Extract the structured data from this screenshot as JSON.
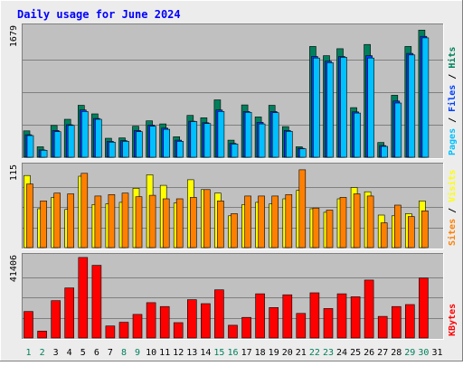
{
  "chart_data": {
    "type": "bar",
    "title": "Daily usage for June 2024",
    "colors": {
      "background": "#ECECEC",
      "panel": "#C0C0C0",
      "title": "#0000FF",
      "hits": "#00805C",
      "files": "#0040FF",
      "pages": "#00C0FF",
      "visits": "#FFFF00",
      "sites": "#FF8000",
      "kbytes": "#FF0000",
      "weekend_label": "#00805C"
    },
    "categories": [
      "1",
      "2",
      "3",
      "4",
      "5",
      "6",
      "7",
      "8",
      "9",
      "10",
      "11",
      "12",
      "13",
      "14",
      "15",
      "16",
      "17",
      "18",
      "19",
      "20",
      "21",
      "22",
      "23",
      "24",
      "25",
      "26",
      "27",
      "28",
      "29",
      "30",
      "31"
    ],
    "weekend_days": [
      "1",
      "2",
      "8",
      "9",
      "15",
      "16",
      "22",
      "23",
      "29",
      "30"
    ],
    "panels": [
      {
        "name": "hits-files-pages",
        "ymax_label": "1679",
        "ymax": 1679,
        "legend": [
          "Pages",
          "Files",
          "Hits"
        ],
        "series": [
          {
            "name": "Hits",
            "values": [
              340,
              135,
              410,
              490,
              670,
              560,
              245,
              250,
              400,
              470,
              430,
              265,
              540,
              510,
              740,
              220,
              675,
              520,
              670,
              395,
              135,
              1430,
              1310,
              1400,
              640,
              1455,
              190,
              800,
              1430,
              1640,
              0
            ]
          },
          {
            "name": "Files",
            "values": [
              290,
              95,
              345,
              420,
              610,
              500,
              205,
              215,
              345,
              415,
              375,
              220,
              465,
              445,
              610,
              180,
              590,
              450,
              590,
              345,
              115,
              1300,
              1240,
              1300,
              585,
              1310,
              150,
              725,
              1340,
              1560,
              0
            ]
          },
          {
            "name": "Pages",
            "values": [
              280,
              90,
              330,
              410,
              590,
              490,
              195,
              205,
              330,
              400,
              360,
              205,
              460,
              435,
              590,
              170,
              580,
              430,
              575,
              335,
              110,
              1280,
              1220,
              1290,
              570,
              1280,
              140,
              700,
              1320,
              1540,
              0
            ]
          }
        ]
      },
      {
        "name": "visits-sites",
        "ymax_label": "115",
        "ymax": 115,
        "legend": [
          "Sites",
          "Visits"
        ],
        "series": [
          {
            "name": "Visits",
            "values": [
              102,
              55,
              71,
              54,
              101,
              61,
              62,
              64,
              84,
              103,
              88,
              63,
              96,
              82,
              77,
              45,
              61,
              64,
              62,
              69,
              81,
              55,
              50,
              69,
              85,
              79,
              46,
              45,
              48,
              66,
              0
            ]
          },
          {
            "name": "Sites",
            "values": [
              90,
              66,
              77,
              76,
              105,
              73,
              75,
              77,
              72,
              74,
              69,
              69,
              71,
              82,
              66,
              48,
              73,
              73,
              73,
              75,
              110,
              56,
              53,
              71,
              76,
              73,
              35,
              60,
              44,
              52,
              0
            ]
          }
        ]
      },
      {
        "name": "kbytes",
        "ymax_label": "41406",
        "ymax": 41406,
        "legend": [
          "KBytes"
        ],
        "series": [
          {
            "name": "KBytes",
            "values": [
              13500,
              3500,
              19000,
              25500,
              41000,
              37000,
              6100,
              8000,
              12000,
              18000,
              16000,
              7800,
              19500,
              17500,
              24500,
              6500,
              10500,
              22500,
              15500,
              22000,
              12500,
              23000,
              15000,
              22500,
              21000,
              29500,
              11000,
              16000,
              17000,
              30500,
              0
            ]
          }
        ]
      }
    ],
    "xlabel": "",
    "ylabel": ""
  }
}
